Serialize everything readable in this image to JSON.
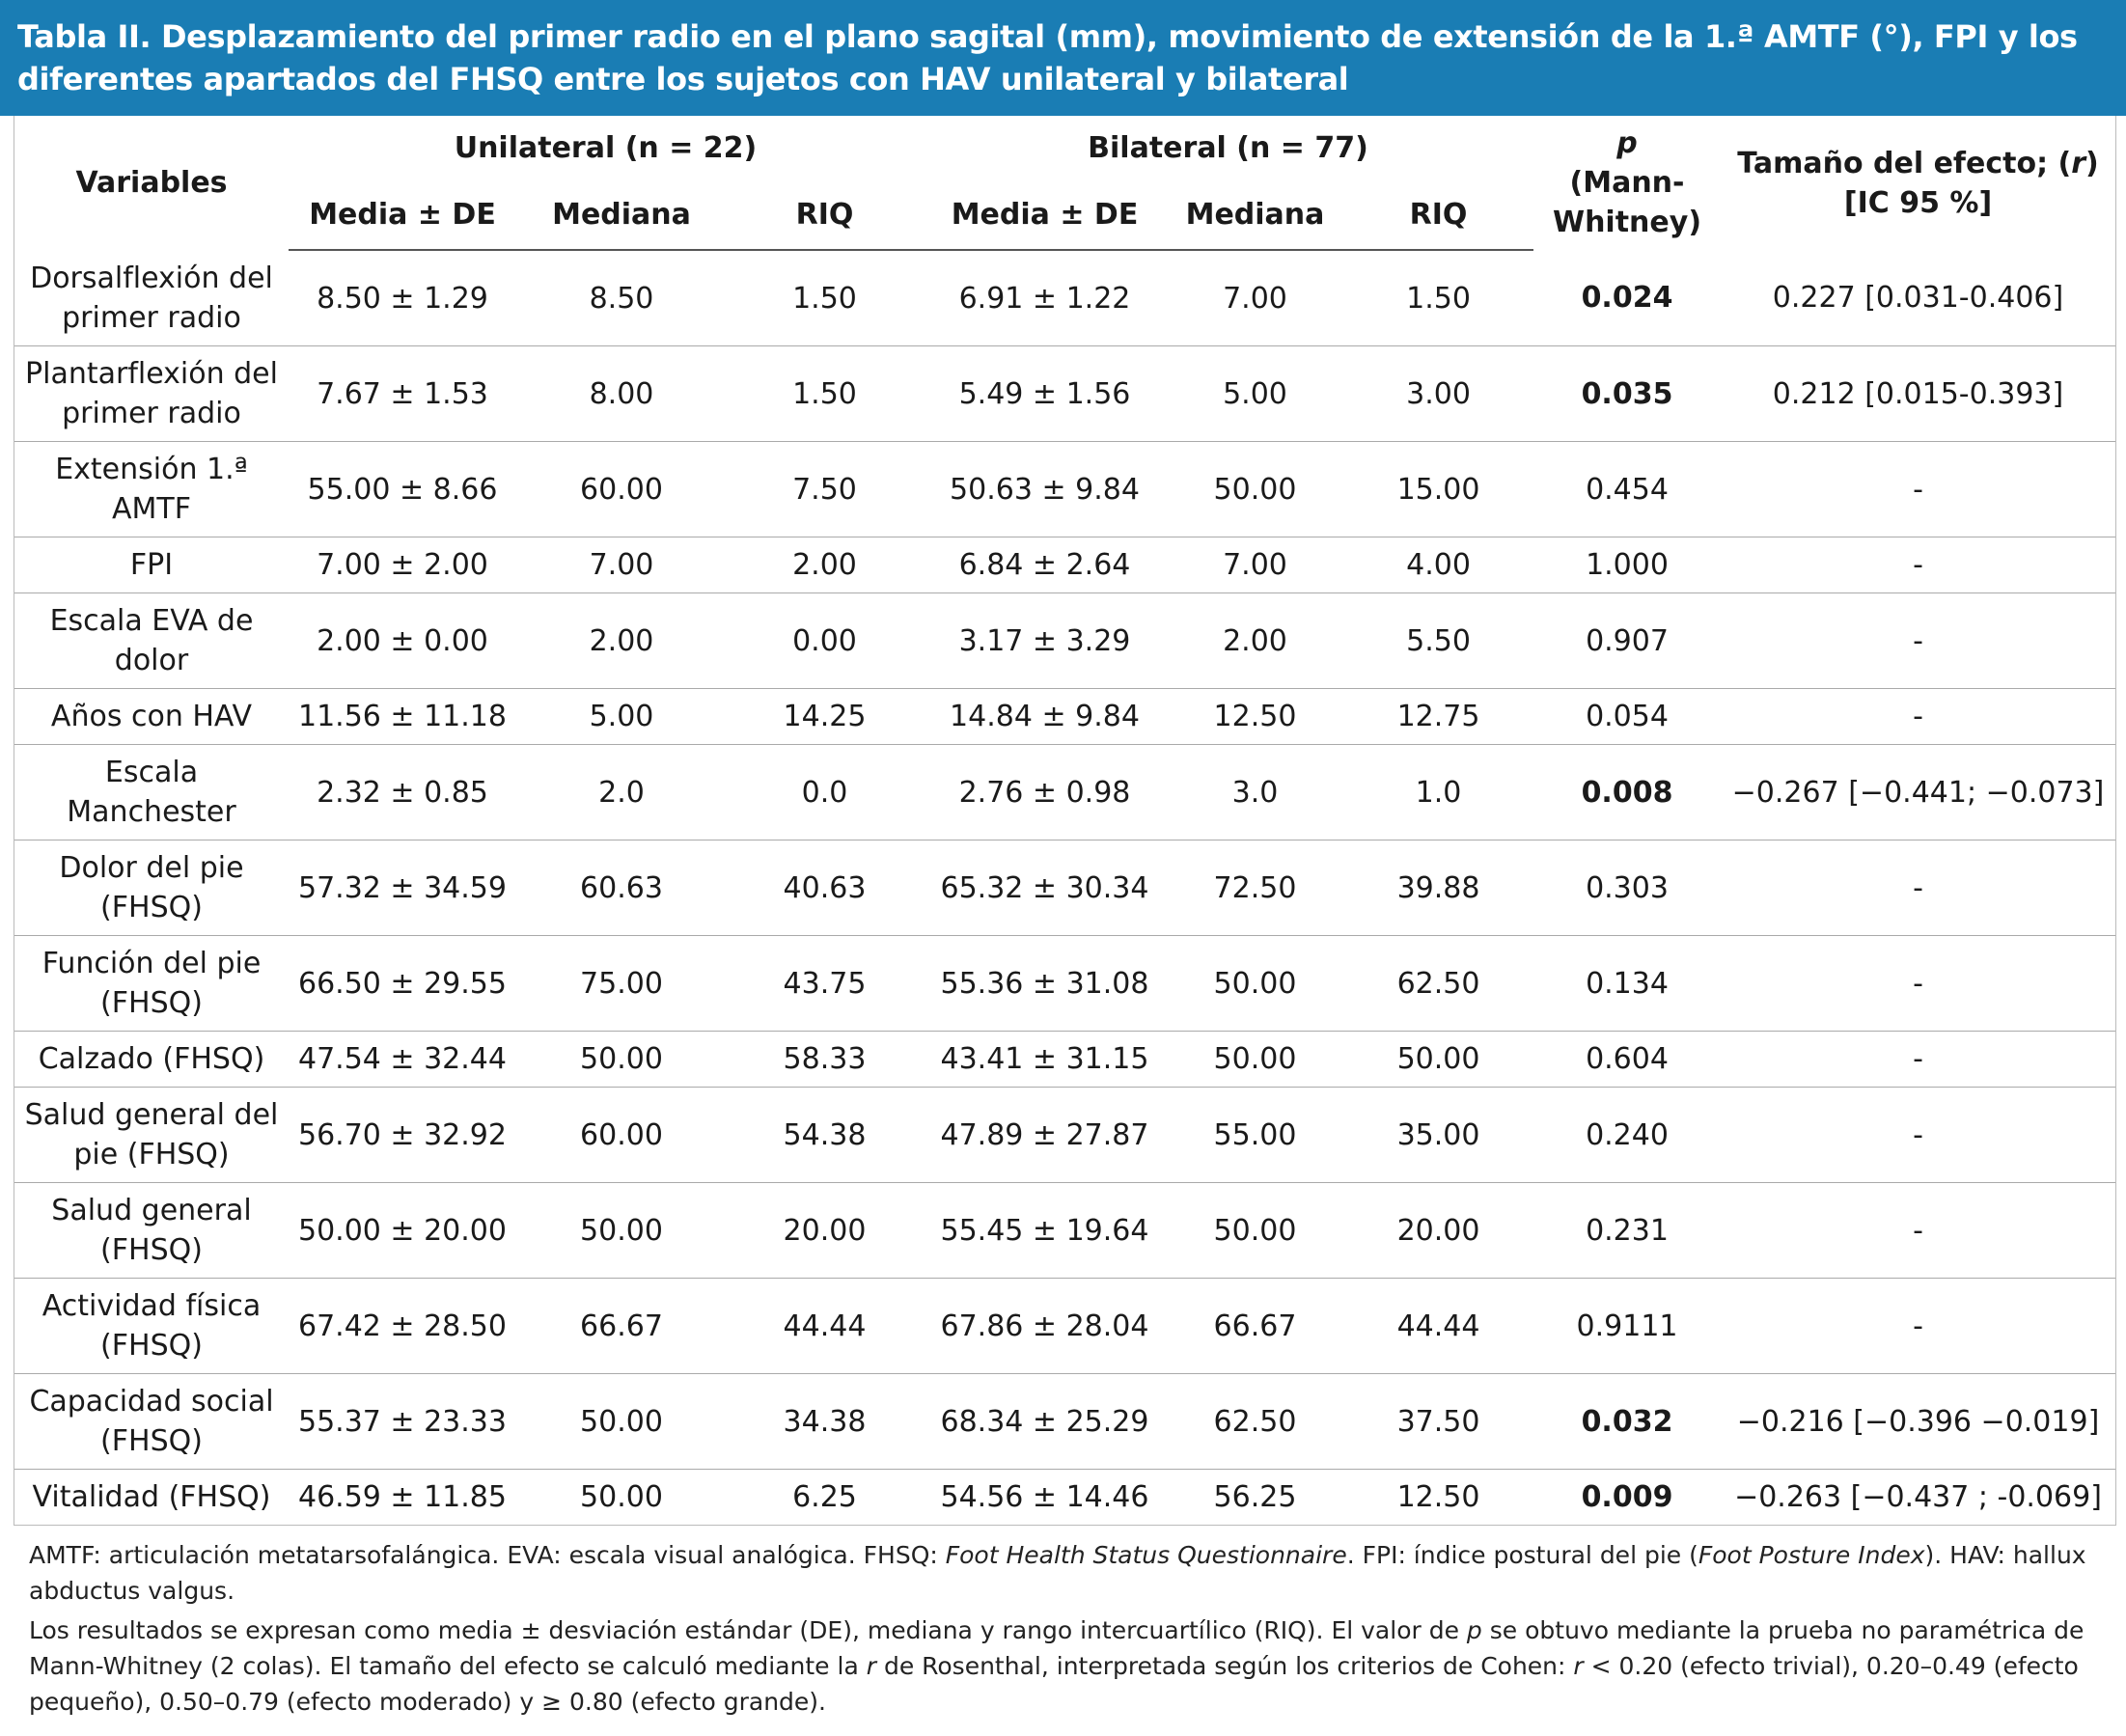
{
  "title": "Tabla II. Desplazamiento del primer radio en el plano sagital (mm), movimiento de extensión de la 1.ª AMTF (°), FPI y los diferentes apartados del FHSQ entre los sujetos con HAV unilateral y bilateral",
  "header": {
    "variables": "Variables",
    "groups": [
      "Unilateral (n = 22)",
      "Bilateral (n = 77)"
    ],
    "subheaders": [
      "Media ± DE",
      "Mediana",
      "RIQ",
      "Media ± DE",
      "Mediana",
      "RIQ"
    ],
    "p": [
      "p",
      "(Mann-Whitney)"
    ],
    "effect": [
      "Tamaño del efecto; (",
      "r",
      ")",
      "[IC 95 %]"
    ]
  },
  "table": {
    "rows": [
      {
        "cells": [
          "Dorsalflexión del primer radio",
          "8.50 ± 1.29",
          "8.50",
          "1.50",
          "6.91 ± 1.22",
          "7.00",
          "1.50",
          "0.024",
          "0.227 [0.031-0.406]"
        ],
        "p_bold": true
      },
      {
        "cells": [
          "Plantarflexión del primer radio",
          "7.67 ± 1.53",
          "8.00",
          "1.50",
          "5.49 ± 1.56",
          "5.00",
          "3.00",
          "0.035",
          "0.212 [0.015-0.393]"
        ],
        "p_bold": true
      },
      {
        "cells": [
          "Extensión 1.ª AMTF",
          "55.00 ± 8.66",
          "60.00",
          "7.50",
          "50.63 ± 9.84",
          "50.00",
          "15.00",
          "0.454",
          "-"
        ],
        "p_bold": false
      },
      {
        "cells": [
          "FPI",
          "7.00 ± 2.00",
          "7.00",
          "2.00",
          "6.84 ± 2.64",
          "7.00",
          "4.00",
          "1.000",
          "-"
        ],
        "p_bold": false
      },
      {
        "cells": [
          "Escala EVA de dolor",
          "2.00 ± 0.00",
          "2.00",
          "0.00",
          "3.17 ± 3.29",
          "2.00",
          "5.50",
          "0.907",
          "-"
        ],
        "p_bold": false
      },
      {
        "cells": [
          "Años con HAV",
          "11.56 ± 11.18",
          "5.00",
          "14.25",
          "14.84 ± 9.84",
          "12.50",
          "12.75",
          "0.054",
          "-"
        ],
        "p_bold": false
      },
      {
        "cells": [
          "Escala Manchester",
          "2.32 ± 0.85",
          "2.0",
          "0.0",
          "2.76 ± 0.98",
          "3.0",
          "1.0",
          "0.008",
          "−0.267 [−0.441; −0.073]"
        ],
        "p_bold": true
      },
      {
        "cells": [
          "Dolor del pie (FHSQ)",
          "57.32 ± 34.59",
          "60.63",
          "40.63",
          "65.32 ± 30.34",
          "72.50",
          "39.88",
          "0.303",
          "-"
        ],
        "p_bold": false
      },
      {
        "cells": [
          "Función del pie (FHSQ)",
          "66.50 ± 29.55",
          "75.00",
          "43.75",
          "55.36 ± 31.08",
          "50.00",
          "62.50",
          "0.134",
          "-"
        ],
        "p_bold": false
      },
      {
        "cells": [
          "Calzado (FHSQ)",
          "47.54 ± 32.44",
          "50.00",
          "58.33",
          "43.41 ± 31.15",
          "50.00",
          "50.00",
          "0.604",
          "-"
        ],
        "p_bold": false
      },
      {
        "cells": [
          "Salud general del pie (FHSQ)",
          "56.70 ± 32.92",
          "60.00",
          "54.38",
          "47.89 ± 27.87",
          "55.00",
          "35.00",
          "0.240",
          "-"
        ],
        "p_bold": false
      },
      {
        "cells": [
          "Salud general (FHSQ)",
          "50.00 ± 20.00",
          "50.00",
          "20.00",
          "55.45 ± 19.64",
          "50.00",
          "20.00",
          "0.231",
          "-"
        ],
        "p_bold": false
      },
      {
        "cells": [
          "Actividad física (FHSQ)",
          "67.42 ± 28.50",
          "66.67",
          "44.44",
          "67.86 ± 28.04",
          "66.67",
          "44.44",
          "0.9111",
          "-"
        ],
        "p_bold": false
      },
      {
        "cells": [
          "Capacidad social (FHSQ)",
          "55.37 ± 23.33",
          "50.00",
          "34.38",
          "68.34 ± 25.29",
          "62.50",
          "37.50",
          "0.032",
          "−0.216 [−0.396 −0.019]"
        ],
        "p_bold": true
      },
      {
        "cells": [
          "Vitalidad (FHSQ)",
          "46.59 ± 11.85",
          "50.00",
          "6.25",
          "54.56 ± 14.46",
          "56.25",
          "12.50",
          "0.009",
          "−0.263 [−0.437 ; -0.069]"
        ],
        "p_bold": true
      }
    ]
  },
  "footnotes": [
    [
      "AMTF: articulación metatarsofalángica. EVA: escala visual analógica. FHSQ: ",
      "Foot Health Status Questionnaire",
      ". FPI: índice postural del pie (",
      "Foot Posture Index",
      "). HAV: hallux abductus valgus."
    ],
    [
      "Los resultados se expresan como media ± desviación estándar (DE), mediana y rango intercuartílico (RIQ). El valor de ",
      "p",
      " se obtuvo mediante la prueba no paramétrica de Mann-Whitney (2 colas). El tamaño del efecto se calculó mediante la ",
      "r",
      " de Rosenthal, interpretada según los criterios de Cohen: ",
      "r",
      " < 0.20 (efecto trivial), 0.20–0.49 (efecto pequeño), 0.50–0.79 (efecto moderado) y ≥ 0.80 (efecto grande)."
    ]
  ]
}
